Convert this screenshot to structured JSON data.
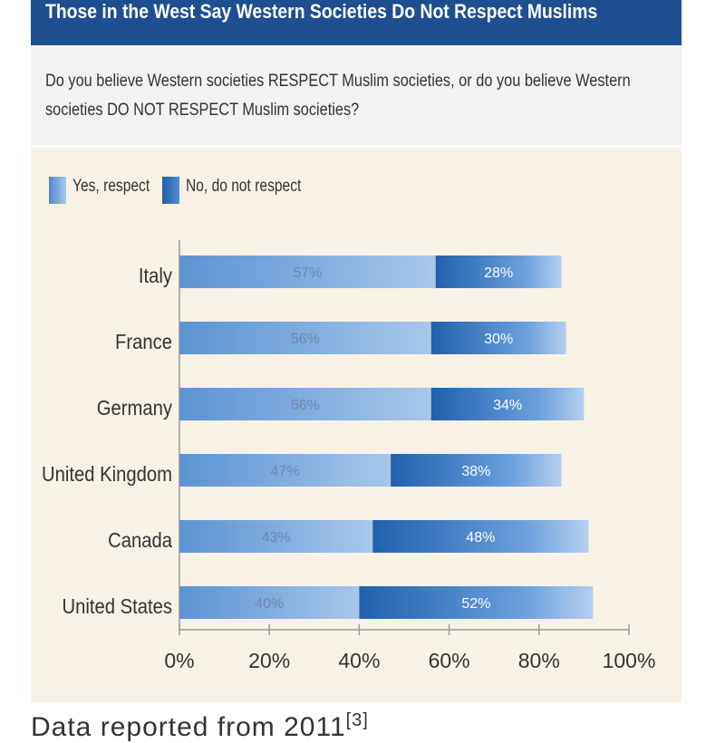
{
  "header": {
    "title": "Those in the West Say Western Societies Do Not Respect Muslims"
  },
  "question": {
    "text": "Do you believe Western societies RESPECT Muslim societies, or do you believe Western societies DO NOT RESPECT Muslim societies?"
  },
  "colors": {
    "header_bg": "#1f4e91",
    "plot_bg": "#f7f2e5",
    "yes": "#7aa9de",
    "no": "#2a6cc0"
  },
  "caption": {
    "text": "Data reported from 2011",
    "ref": "[3]"
  },
  "chart_data": {
    "type": "bar",
    "orientation": "horizontal",
    "stacked": true,
    "categories": [
      "Italy",
      "France",
      "Germany",
      "United Kingdom",
      "Canada",
      "United States"
    ],
    "series": [
      {
        "name": "Yes, respect",
        "values": [
          57,
          56,
          56,
          47,
          43,
          40
        ]
      },
      {
        "name": "No, do not respect",
        "values": [
          28,
          30,
          34,
          38,
          48,
          52
        ]
      }
    ],
    "value_labels": {
      "yes": [
        "57%",
        "56%",
        "56%",
        "47%",
        "43%",
        "40%"
      ],
      "no": [
        "28%",
        "30%",
        "34%",
        "38%",
        "48%",
        "52%"
      ]
    },
    "xticks": [
      "0%",
      "20%",
      "40%",
      "60%",
      "80%",
      "100%"
    ],
    "xlim": [
      0,
      100
    ],
    "legend_position": "top-left",
    "grid": false
  }
}
